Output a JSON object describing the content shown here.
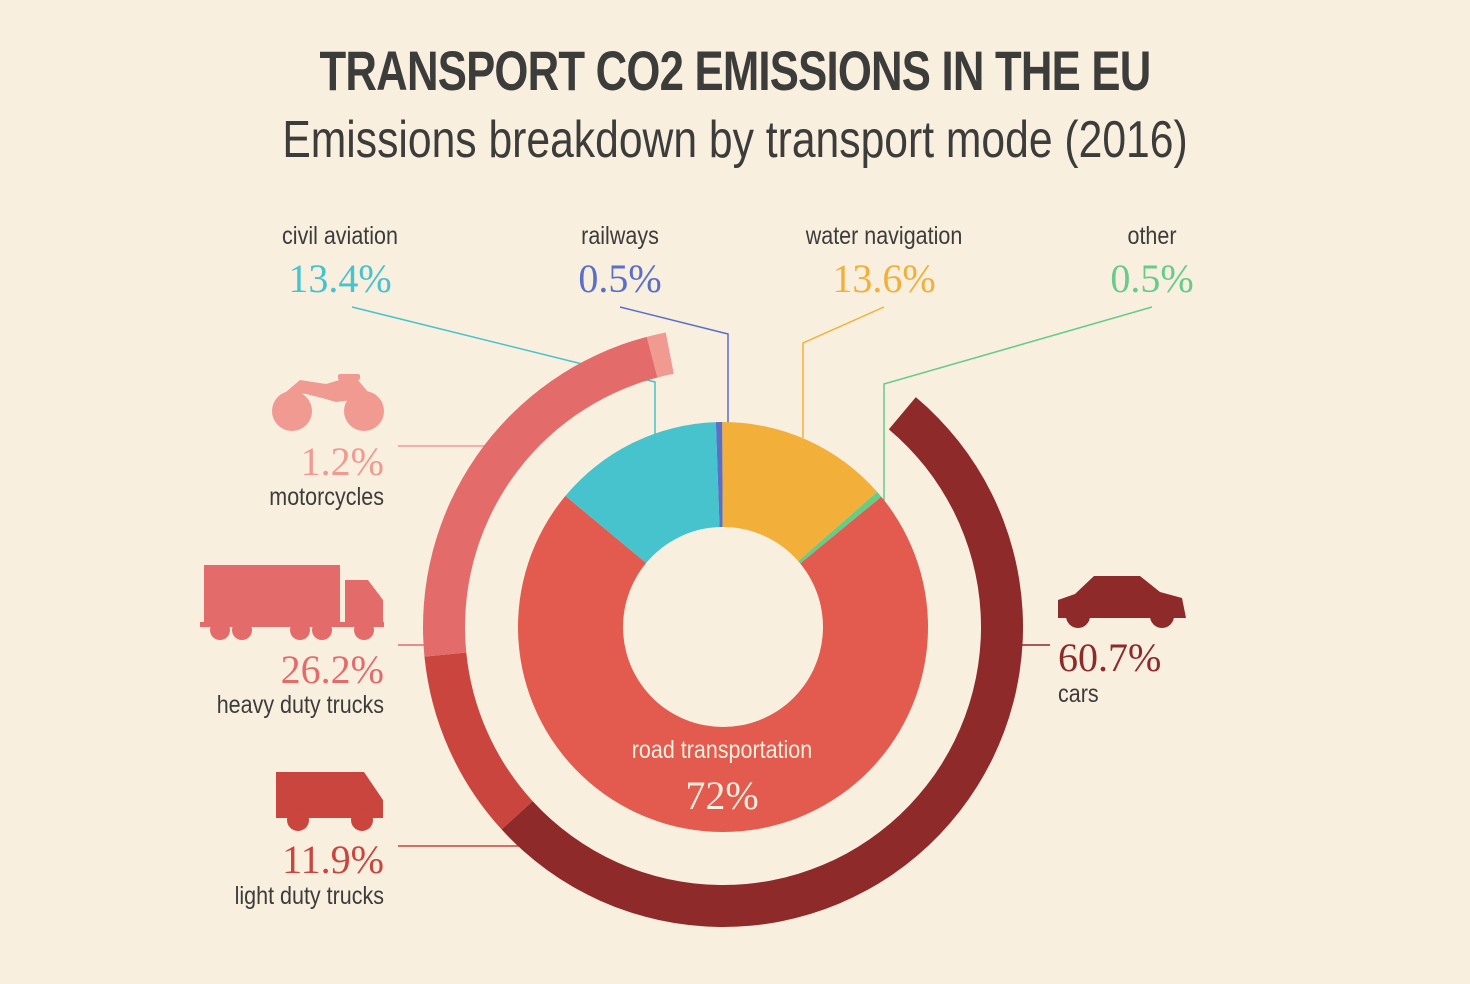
{
  "title": "TRANSPORT CO2 EMISSIONS IN THE EU",
  "subtitle": "Emissions breakdown by transport mode (2016)",
  "colors": {
    "background": "#f8efdf",
    "civil_aviation": "#46c3cd",
    "railways": "#5a6fc8",
    "water_navigation": "#f2b03b",
    "other": "#66cc88",
    "road_transportation": "#e35a4e",
    "motorcycles": "#f09a92",
    "heavy_duty_trucks": "#e36c6b",
    "light_duty_trucks": "#c9453d",
    "cars": "#8e2a29"
  },
  "chart_data": [
    {
      "type": "pie",
      "name": "inner-donut",
      "categories": [
        "civil aviation",
        "railways",
        "water navigation",
        "other",
        "road transportation"
      ],
      "values": [
        13.4,
        0.5,
        13.6,
        0.5,
        72
      ],
      "labels": [
        "13.4%",
        "0.5%",
        "13.6%",
        "0.5%",
        "72%"
      ]
    },
    {
      "type": "pie",
      "name": "road-breakdown-ring",
      "categories": [
        "cars",
        "light duty trucks",
        "heavy duty trucks",
        "motorcycles"
      ],
      "values": [
        60.7,
        11.9,
        26.2,
        1.2
      ],
      "labels": [
        "60.7%",
        "11.9%",
        "26.2%",
        "1.2%"
      ]
    }
  ],
  "icons": {
    "motorcycles": "motorcycle-icon",
    "heavy_duty_trucks": "truck-icon",
    "light_duty_trucks": "van-icon",
    "cars": "car-icon"
  }
}
